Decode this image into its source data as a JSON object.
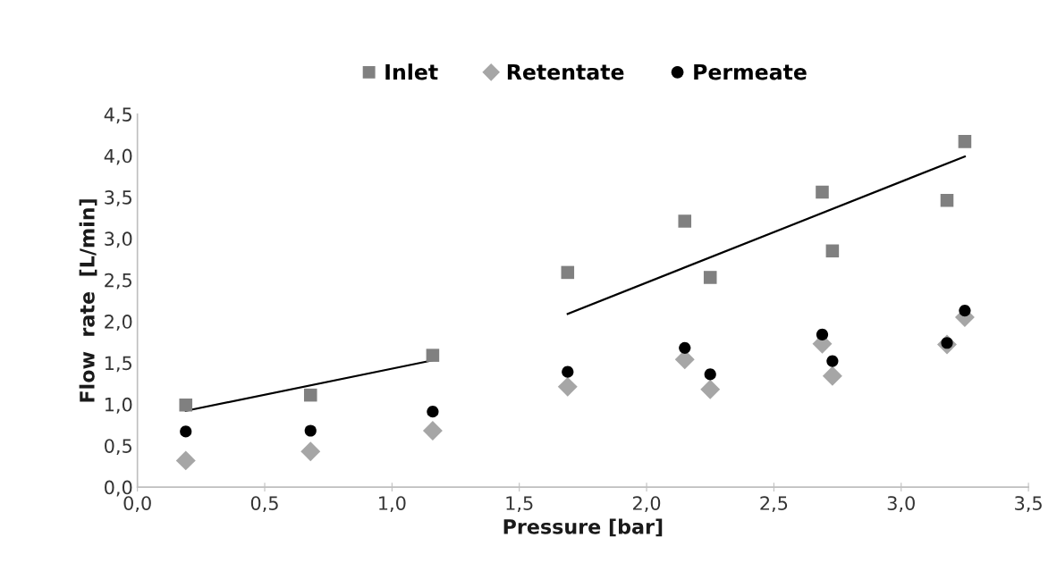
{
  "chart_data": {
    "type": "scatter",
    "xlabel": "Pressure [bar]",
    "ylabel": "Flow  rate  [L/min]",
    "xlim": [
      0,
      3.5
    ],
    "ylim": [
      0,
      4.5
    ],
    "xticks": [
      {
        "value": 0,
        "label": "0,0"
      },
      {
        "value": 0.5,
        "label": "0,5"
      },
      {
        "value": 1,
        "label": "1,0"
      },
      {
        "value": 1.5,
        "label": "1,5"
      },
      {
        "value": 2,
        "label": "2,0"
      },
      {
        "value": 2.5,
        "label": "2,5"
      },
      {
        "value": 3,
        "label": "3,0"
      },
      {
        "value": 3.5,
        "label": "3,5"
      }
    ],
    "yticks": [
      {
        "value": 0,
        "label": "0,0"
      },
      {
        "value": 0.5,
        "label": "0,5"
      },
      {
        "value": 1,
        "label": "1,0"
      },
      {
        "value": 1.5,
        "label": "1,5"
      },
      {
        "value": 2,
        "label": "2,0"
      },
      {
        "value": 2.5,
        "label": "2,5"
      },
      {
        "value": 3,
        "label": "3,0"
      },
      {
        "value": 3.5,
        "label": "3,5"
      },
      {
        "value": 4,
        "label": "4,0"
      },
      {
        "value": 4.5,
        "label": "4,5"
      }
    ],
    "grid": false,
    "legend": "top",
    "series": [
      {
        "name": "Inlet",
        "color": "#808080",
        "marker": "square",
        "x": [
          0.19,
          0.68,
          1.16,
          1.69,
          2.15,
          2.25,
          2.69,
          2.73,
          3.18,
          3.25
        ],
        "values": [
          0.99,
          1.11,
          1.59,
          2.59,
          3.21,
          2.53,
          3.56,
          2.85,
          3.46,
          4.17
        ]
      },
      {
        "name": "Retentate",
        "color": "#a6a6a6",
        "marker": "diamond",
        "x": [
          0.19,
          0.68,
          1.16,
          1.69,
          2.15,
          2.25,
          2.69,
          2.73,
          3.18,
          3.25
        ],
        "values": [
          0.32,
          0.43,
          0.68,
          1.21,
          1.54,
          1.18,
          1.73,
          1.34,
          1.72,
          2.05
        ]
      },
      {
        "name": "Permeate",
        "color": "#000000",
        "marker": "circle",
        "x": [
          0.19,
          0.68,
          1.16,
          1.69,
          2.15,
          2.25,
          2.69,
          2.73,
          3.18,
          3.25
        ],
        "values": [
          0.67,
          0.68,
          0.91,
          1.39,
          1.68,
          1.36,
          1.84,
          1.52,
          1.74,
          2.13
        ]
      },
      {
        "type": "line",
        "color": "#000000",
        "marker": "none",
        "x": [
          0.19,
          1.16
        ],
        "values": [
          0.92,
          1.53
        ]
      },
      {
        "type": "line",
        "color": "#000000",
        "marker": "none",
        "x": [
          1.69,
          3.25
        ],
        "values": [
          2.09,
          3.99
        ]
      }
    ]
  }
}
